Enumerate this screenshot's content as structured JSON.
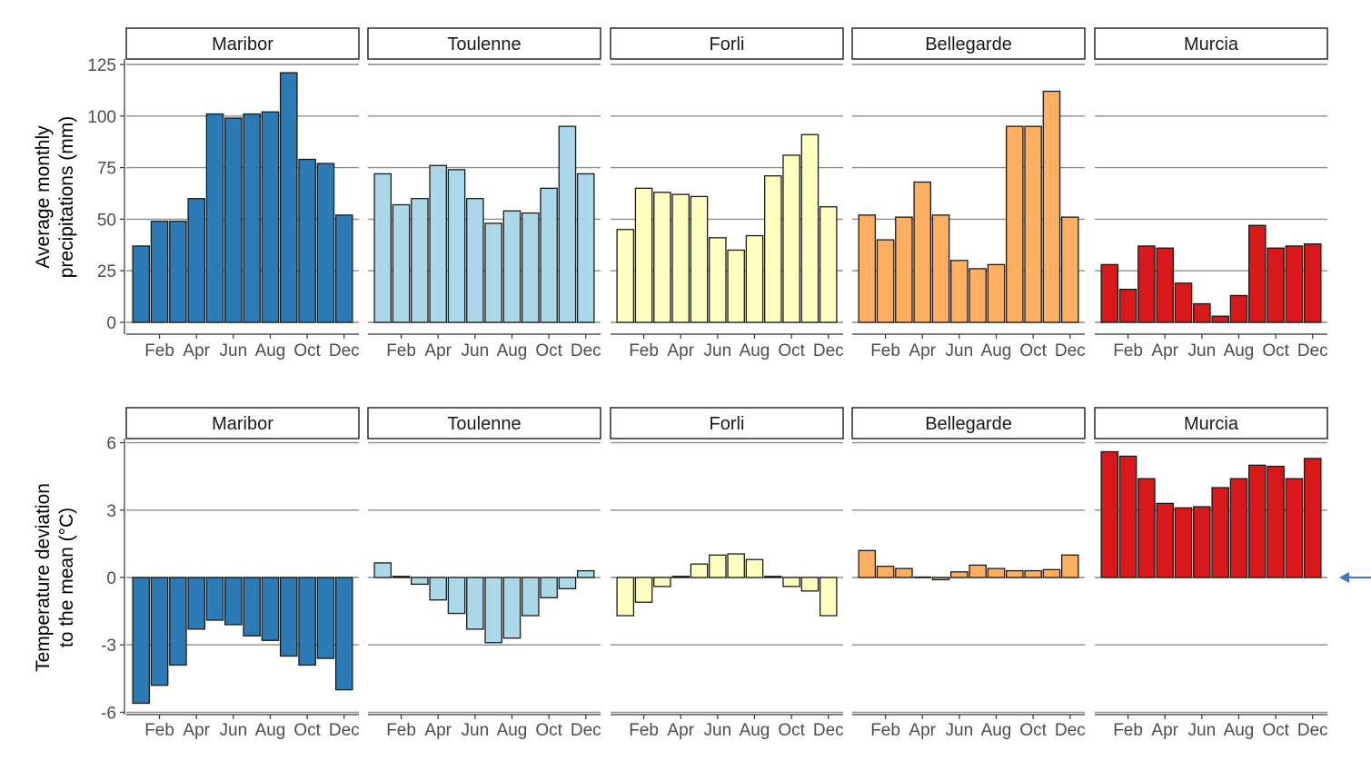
{
  "chart_data": [
    {
      "type": "bar",
      "ylabel_lines": [
        "Average monthly",
        "precipitations (mm)"
      ],
      "ylim": [
        -6,
        135
      ],
      "yticks": [
        0,
        25,
        50,
        75,
        100,
        125
      ],
      "grid": true,
      "months": [
        "Jan",
        "Feb",
        "Mar",
        "Apr",
        "May",
        "Jun",
        "Jul",
        "Aug",
        "Sep",
        "Oct",
        "Nov",
        "Dec"
      ],
      "xtick_labels": [
        "Feb",
        "Apr",
        "Jun",
        "Aug",
        "Oct",
        "Dec"
      ],
      "panels": [
        {
          "name": "Maribor",
          "color": "#2c7bb6",
          "values": [
            37,
            49,
            49,
            60,
            101,
            99,
            101,
            102,
            121,
            79,
            77,
            52
          ]
        },
        {
          "name": "Toulenne",
          "color": "#abd9e9",
          "values": [
            72,
            57,
            60,
            76,
            74,
            60,
            48,
            54,
            53,
            65,
            95,
            72
          ]
        },
        {
          "name": "Forli",
          "color": "#ffffbf",
          "values": [
            45,
            65,
            63,
            62,
            61,
            41,
            35,
            42,
            71,
            81,
            91,
            56
          ]
        },
        {
          "name": "Bellegarde",
          "color": "#fdae61",
          "values": [
            52,
            40,
            51,
            68,
            52,
            30,
            26,
            28,
            95,
            95,
            112,
            51
          ]
        },
        {
          "name": "Murcia",
          "color": "#d7191c",
          "values": [
            28,
            16,
            37,
            36,
            19,
            9,
            3,
            13,
            47,
            36,
            37,
            38
          ]
        }
      ]
    },
    {
      "type": "bar",
      "ylabel_lines": [
        "Temperature deviation",
        "to the mean (°C)"
      ],
      "ylim": [
        -6,
        6
      ],
      "yticks": [
        -6,
        -3,
        0,
        3,
        6
      ],
      "grid": true,
      "months": [
        "Jan",
        "Feb",
        "Mar",
        "Apr",
        "May",
        "Jun",
        "Jul",
        "Aug",
        "Sep",
        "Oct",
        "Nov",
        "Dec"
      ],
      "xtick_labels": [
        "Feb",
        "Apr",
        "Jun",
        "Aug",
        "Oct",
        "Dec"
      ],
      "panels": [
        {
          "name": "Maribor",
          "color": "#2c7bb6",
          "values": [
            -5.6,
            -4.8,
            -3.9,
            -2.3,
            -1.9,
            -2.1,
            -2.6,
            -2.8,
            -3.5,
            -3.9,
            -3.6,
            -5.0
          ]
        },
        {
          "name": "Toulenne",
          "color": "#abd9e9",
          "values": [
            0.65,
            0.05,
            -0.3,
            -1.0,
            -1.6,
            -2.3,
            -2.9,
            -2.7,
            -1.7,
            -0.9,
            -0.5,
            0.3
          ]
        },
        {
          "name": "Forli",
          "color": "#ffffbf",
          "values": [
            -1.7,
            -1.1,
            -0.4,
            0.05,
            0.6,
            1.0,
            1.05,
            0.8,
            0.05,
            -0.4,
            -0.6,
            -1.7
          ]
        },
        {
          "name": "Bellegarde",
          "color": "#fdae61",
          "values": [
            1.2,
            0.5,
            0.4,
            0.02,
            -0.1,
            0.25,
            0.55,
            0.4,
            0.3,
            0.3,
            0.35,
            1.0
          ]
        },
        {
          "name": "Murcia",
          "color": "#d7191c",
          "values": [
            5.6,
            5.4,
            4.4,
            3.3,
            3.1,
            3.15,
            4.0,
            4.4,
            5.0,
            4.95,
            4.4,
            5.3
          ]
        }
      ]
    }
  ],
  "annotation": {
    "arrow_color": "#4472c4"
  }
}
